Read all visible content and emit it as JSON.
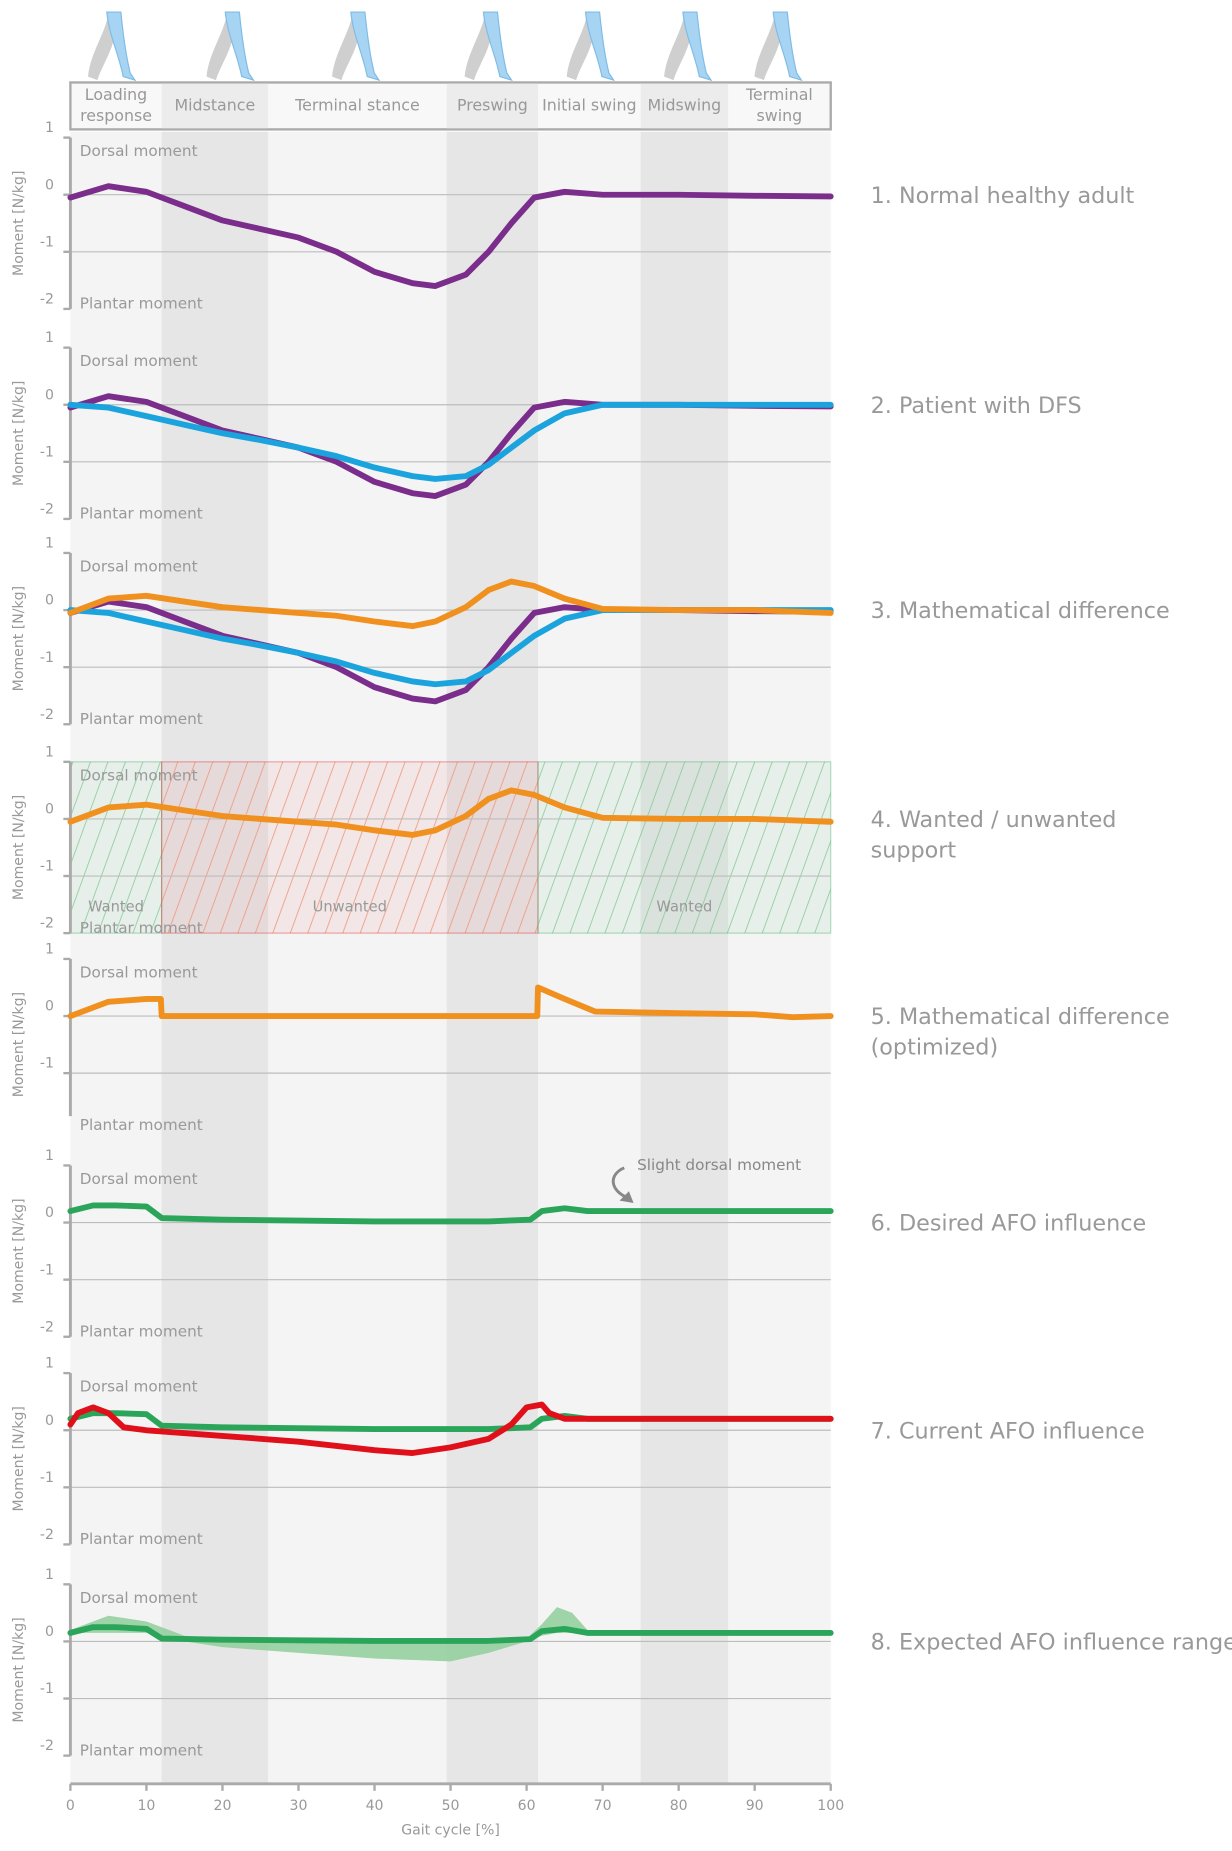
{
  "phases": [
    {
      "label": [
        "Loading",
        "response"
      ],
      "start": 0,
      "end": 12,
      "shade": false
    },
    {
      "label": [
        "Midstance"
      ],
      "start": 12,
      "end": 26,
      "shade": true
    },
    {
      "label": [
        "Terminal stance"
      ],
      "start": 26,
      "end": 49.5,
      "shade": false
    },
    {
      "label": [
        "Preswing"
      ],
      "start": 49.5,
      "end": 61.5,
      "shade": true
    },
    {
      "label": [
        "Initial swing"
      ],
      "start": 61.5,
      "end": 75,
      "shade": false
    },
    {
      "label": [
        "Midswing"
      ],
      "start": 75,
      "end": 86.5,
      "shade": true
    },
    {
      "label": [
        "Terminal",
        "swing"
      ],
      "start": 86.5,
      "end": 100,
      "shade": false
    }
  ],
  "xlim": [
    0,
    100
  ],
  "xticks": [
    0,
    10,
    20,
    30,
    40,
    50,
    60,
    70,
    80,
    90,
    100
  ],
  "xlabel": "Gait cycle [%]",
  "chart_data": [
    {
      "type": "line",
      "title": [
        "1. Normal healthy adult"
      ],
      "title_color": "#7b2d8b",
      "ylabel": "Moment [N/kg]",
      "dorsal": "Dorsal moment",
      "plantar": "Plantar moment",
      "ylim": [
        -2,
        1
      ],
      "yticks": [
        1,
        0,
        -1,
        -2
      ],
      "series": [
        {
          "color": "#7b2d8b",
          "x": [
            0,
            5,
            10,
            15,
            20,
            25,
            30,
            35,
            40,
            45,
            48,
            52,
            55,
            58,
            61,
            65,
            70,
            80,
            90,
            100
          ],
          "values": [
            -0.05,
            0.15,
            0.05,
            -0.2,
            -0.45,
            -0.6,
            -0.75,
            -1.0,
            -1.35,
            -1.55,
            -1.6,
            -1.4,
            -1.0,
            -0.5,
            -0.05,
            0.05,
            0,
            0,
            -0.02,
            -0.03
          ]
        }
      ]
    },
    {
      "type": "line",
      "title": [
        "2. Patient with DFS"
      ],
      "title_color": "#1aa3dd",
      "ylabel": "Moment [N/kg]",
      "dorsal": "Dorsal moment",
      "plantar": "Plantar moment",
      "ylim": [
        -2,
        1
      ],
      "yticks": [
        1,
        0,
        -1,
        -2
      ],
      "series": [
        {
          "color": "#7b2d8b",
          "x": [
            0,
            5,
            10,
            15,
            20,
            25,
            30,
            35,
            40,
            45,
            48,
            52,
            55,
            58,
            61,
            65,
            70,
            80,
            90,
            100
          ],
          "values": [
            -0.05,
            0.15,
            0.05,
            -0.2,
            -0.45,
            -0.6,
            -0.75,
            -1.0,
            -1.35,
            -1.55,
            -1.6,
            -1.4,
            -1.0,
            -0.5,
            -0.05,
            0.05,
            0,
            0,
            -0.02,
            -0.03
          ]
        },
        {
          "color": "#1aa3dd",
          "x": [
            0,
            5,
            10,
            15,
            20,
            25,
            30,
            35,
            40,
            45,
            48,
            52,
            55,
            58,
            61,
            65,
            70,
            80,
            90,
            100
          ],
          "values": [
            0,
            -0.05,
            -0.2,
            -0.35,
            -0.5,
            -0.62,
            -0.75,
            -0.9,
            -1.1,
            -1.25,
            -1.3,
            -1.25,
            -1.05,
            -0.75,
            -0.45,
            -0.15,
            0,
            0,
            0,
            0
          ]
        }
      ]
    },
    {
      "type": "line",
      "title": [
        "3. Mathematical difference"
      ],
      "title_color": "#f0901e",
      "ylabel": "Moment [N/kg]",
      "dorsal": "Dorsal moment",
      "plantar": "Plantar moment",
      "ylim": [
        -2,
        1
      ],
      "yticks": [
        1,
        0,
        -1,
        -2
      ],
      "series": [
        {
          "color": "#7b2d8b",
          "x": [
            0,
            5,
            10,
            15,
            20,
            25,
            30,
            35,
            40,
            45,
            48,
            52,
            55,
            58,
            61,
            65,
            70,
            80,
            90,
            100
          ],
          "values": [
            -0.05,
            0.15,
            0.05,
            -0.2,
            -0.45,
            -0.6,
            -0.75,
            -1.0,
            -1.35,
            -1.55,
            -1.6,
            -1.4,
            -1.0,
            -0.5,
            -0.05,
            0.05,
            0,
            0,
            -0.02,
            -0.03
          ]
        },
        {
          "color": "#1aa3dd",
          "x": [
            0,
            5,
            10,
            15,
            20,
            25,
            30,
            35,
            40,
            45,
            48,
            52,
            55,
            58,
            61,
            65,
            70,
            80,
            90,
            100
          ],
          "values": [
            0,
            -0.05,
            -0.2,
            -0.35,
            -0.5,
            -0.62,
            -0.75,
            -0.9,
            -1.1,
            -1.25,
            -1.3,
            -1.25,
            -1.05,
            -0.75,
            -0.45,
            -0.15,
            0,
            0,
            0,
            0
          ]
        },
        {
          "color": "#f0901e",
          "x": [
            0,
            5,
            10,
            15,
            20,
            25,
            30,
            35,
            40,
            45,
            48,
            52,
            55,
            58,
            61,
            65,
            70,
            80,
            90,
            100
          ],
          "values": [
            -0.05,
            0.2,
            0.25,
            0.15,
            0.05,
            0,
            -0.05,
            -0.1,
            -0.2,
            -0.28,
            -0.2,
            0.05,
            0.35,
            0.5,
            0.42,
            0.2,
            0.02,
            0,
            0,
            -0.05
          ]
        }
      ]
    },
    {
      "type": "line",
      "title": [
        "4. Wanted / unwanted",
        "support"
      ],
      "title_color": "#999999",
      "ylabel": "Moment [N/kg]",
      "dorsal": "Dorsal moment",
      "plantar": "Plantar moment",
      "ylim": [
        -2,
        1
      ],
      "yticks": [
        1,
        0,
        -1,
        -2
      ],
      "regions": [
        {
          "label": "Wanted",
          "start": 0,
          "end": 12,
          "color": "#2aa55a"
        },
        {
          "label": "Unwanted",
          "start": 12,
          "end": 61.5,
          "color": "#e0101a"
        },
        {
          "label": "Wanted",
          "start": 61.5,
          "end": 100,
          "color": "#2aa55a"
        }
      ],
      "series": [
        {
          "color": "#f0901e",
          "x": [
            0,
            5,
            10,
            15,
            20,
            25,
            30,
            35,
            40,
            45,
            48,
            52,
            55,
            58,
            61,
            65,
            70,
            80,
            90,
            100
          ],
          "values": [
            -0.05,
            0.2,
            0.25,
            0.15,
            0.05,
            0,
            -0.05,
            -0.1,
            -0.2,
            -0.28,
            -0.2,
            0.05,
            0.35,
            0.5,
            0.42,
            0.2,
            0.02,
            0,
            0,
            -0.05
          ]
        }
      ]
    },
    {
      "type": "line",
      "title": [
        "5. Mathematical difference",
        "(optimized)"
      ],
      "title_color": "#f0901e",
      "ylabel": "Moment [N/kg]",
      "dorsal": "Dorsal moment",
      "plantar": "Plantar moment",
      "ylim": [
        -2,
        1
      ],
      "yticks": [
        1,
        0,
        -1
      ],
      "series": [
        {
          "color": "#f0901e",
          "x": [
            0,
            5,
            10,
            11.9,
            12,
            61.4,
            61.5,
            65,
            69,
            80,
            90,
            95,
            100
          ],
          "values": [
            0,
            0.25,
            0.3,
            0.3,
            0,
            0,
            0.5,
            0.3,
            0.08,
            0.05,
            0.03,
            -0.02,
            0
          ]
        }
      ]
    },
    {
      "type": "line",
      "title": [
        "6. Desired AFO influence"
      ],
      "title_color": "#2aa55a",
      "ylabel": "Moment [N/kg]",
      "dorsal": "Dorsal moment",
      "plantar": "Plantar moment",
      "ylim": [
        -2,
        1
      ],
      "yticks": [
        1,
        0,
        -1,
        -2
      ],
      "annotation": "Slight dorsal moment",
      "series": [
        {
          "color": "#2aa55a",
          "x": [
            0,
            3,
            6,
            10,
            12,
            20,
            40,
            55,
            60.5,
            62,
            65,
            68,
            69,
            100
          ],
          "values": [
            0.2,
            0.3,
            0.3,
            0.28,
            0.08,
            0.05,
            0.02,
            0.02,
            0.05,
            0.2,
            0.25,
            0.2,
            0.2,
            0.2
          ]
        }
      ]
    },
    {
      "type": "line",
      "title": [
        "7. Current AFO influence"
      ],
      "title_color": "#e0101a",
      "ylabel": "Moment [N/kg]",
      "dorsal": "Dorsal moment",
      "plantar": "Plantar moment",
      "ylim": [
        -2,
        1
      ],
      "yticks": [
        1,
        0,
        -1,
        -2
      ],
      "series": [
        {
          "color": "#2aa55a",
          "x": [
            0,
            3,
            6,
            10,
            12,
            20,
            40,
            55,
            60.5,
            62,
            65,
            68,
            69,
            100
          ],
          "values": [
            0.2,
            0.3,
            0.3,
            0.28,
            0.08,
            0.05,
            0.02,
            0.02,
            0.05,
            0.2,
            0.25,
            0.2,
            0.2,
            0.2
          ]
        },
        {
          "color": "#e0101a",
          "x": [
            0,
            1,
            3,
            5,
            7,
            10,
            20,
            30,
            40,
            45,
            50,
            55,
            58,
            60,
            62,
            63,
            65,
            70,
            100
          ],
          "values": [
            0.1,
            0.3,
            0.4,
            0.3,
            0.05,
            0,
            -0.1,
            -0.2,
            -0.35,
            -0.4,
            -0.3,
            -0.15,
            0.1,
            0.4,
            0.45,
            0.3,
            0.2,
            0.2,
            0.2
          ]
        }
      ]
    },
    {
      "type": "line",
      "title": [
        "8. Expected AFO influence range"
      ],
      "title_color": "#8fcc9a",
      "ylabel": "Moment [N/kg]",
      "dorsal": "Dorsal moment",
      "plantar": "Plantar moment",
      "ylim": [
        -2,
        1
      ],
      "yticks": [
        1,
        0,
        -1,
        -2
      ],
      "range": {
        "color": "#8fcc9a",
        "x": [
          0,
          5,
          10,
          15,
          20,
          30,
          40,
          50,
          55,
          60,
          62,
          64,
          66,
          68,
          70,
          100
        ],
        "upper": [
          0.2,
          0.45,
          0.35,
          0.1,
          0.05,
          0.02,
          0.02,
          0.02,
          0.02,
          0.05,
          0.3,
          0.6,
          0.5,
          0.2,
          0.15,
          0.15
        ],
        "lower": [
          0.15,
          0.15,
          0.15,
          0,
          -0.1,
          -0.2,
          -0.3,
          -0.35,
          -0.2,
          0,
          0.1,
          0.15,
          0.15,
          0.12,
          0.12,
          0.12
        ]
      },
      "series": [
        {
          "color": "#2aa55a",
          "x": [
            0,
            3,
            6,
            10,
            12,
            20,
            40,
            55,
            60.5,
            62,
            65,
            68,
            69,
            100
          ],
          "values": [
            0.15,
            0.25,
            0.25,
            0.22,
            0.05,
            0.03,
            0.01,
            0.01,
            0.04,
            0.18,
            0.22,
            0.15,
            0.15,
            0.15
          ]
        }
      ]
    }
  ]
}
